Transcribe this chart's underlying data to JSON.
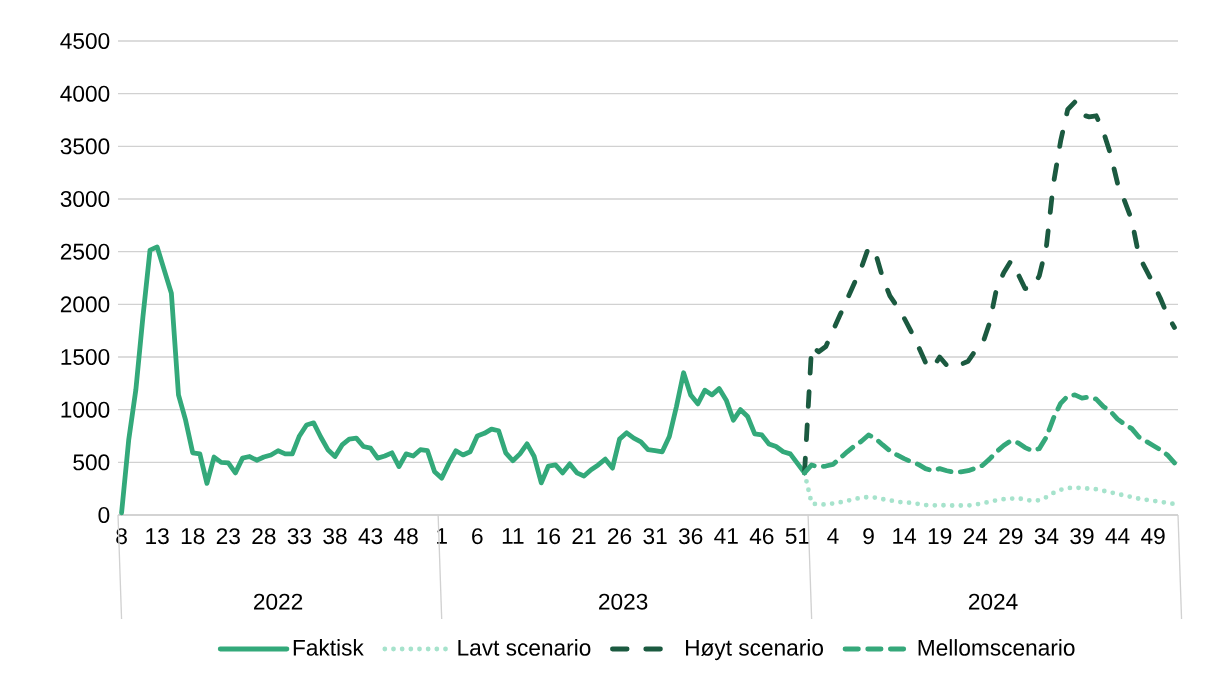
{
  "chart_data": {
    "type": "line",
    "categories": [
      "8",
      null,
      null,
      null,
      null,
      "13",
      null,
      null,
      null,
      null,
      "18",
      null,
      null,
      null,
      null,
      "23",
      null,
      null,
      null,
      null,
      "28",
      null,
      null,
      null,
      null,
      "33",
      null,
      null,
      null,
      null,
      "38",
      null,
      null,
      null,
      null,
      "43",
      null,
      null,
      null,
      null,
      "48",
      null,
      null,
      null,
      null,
      "1",
      null,
      null,
      null,
      null,
      "6",
      null,
      null,
      null,
      null,
      "11",
      null,
      null,
      null,
      null,
      "16",
      null,
      null,
      null,
      null,
      "21",
      null,
      null,
      null,
      null,
      "26",
      null,
      null,
      null,
      null,
      "31",
      null,
      null,
      null,
      null,
      "36",
      null,
      null,
      null,
      null,
      "41",
      null,
      null,
      null,
      null,
      "46",
      null,
      null,
      null,
      null,
      "51",
      null,
      null,
      null,
      null,
      "4",
      null,
      null,
      null,
      null,
      "9",
      null,
      null,
      null,
      null,
      "14",
      null,
      null,
      null,
      null,
      "19",
      null,
      null,
      null,
      null,
      "24",
      null,
      null,
      null,
      null,
      "29",
      null,
      null,
      null,
      null,
      "34",
      null,
      null,
      null,
      null,
      "39",
      null,
      null,
      null,
      null,
      "44",
      null,
      null,
      null,
      null,
      "49",
      null,
      null,
      null
    ],
    "annotations": [
      "2022",
      "2023",
      "2024"
    ],
    "series": [
      {
        "name": "Faktisk",
        "color": "#33a97a",
        "line_style": "solid",
        "values": [
          20,
          710,
          1185,
          1880,
          2515,
          2545,
          2325,
          2105,
          1140,
          900,
          590,
          580,
          300,
          550,
          500,
          495,
          400,
          540,
          555,
          520,
          550,
          570,
          610,
          580,
          580,
          750,
          855,
          875,
          740,
          620,
          555,
          665,
          720,
          730,
          650,
          635,
          540,
          560,
          590,
          460,
          580,
          560,
          620,
          610,
          410,
          350,
          490,
          610,
          570,
          600,
          750,
          775,
          815,
          800,
          590,
          515,
          580,
          675,
          555,
          305,
          465,
          475,
          400,
          485,
          400,
          370,
          430,
          475,
          530,
          445,
          720,
          780,
          730,
          695,
          620,
          610,
          600,
          745,
          1030,
          1350,
          1140,
          1055,
          1185,
          1140,
          1200,
          1090,
          900,
          1000,
          935,
          770,
          760,
          675,
          650,
          600,
          580,
          490,
          400,
          null,
          null,
          null,
          null,
          null,
          null,
          null,
          null,
          null,
          null,
          null,
          null,
          null,
          null,
          null,
          null,
          null,
          null,
          null,
          null,
          null,
          null,
          null,
          null,
          null,
          null,
          null,
          null,
          null,
          null,
          null,
          null,
          null,
          null,
          null,
          null,
          null,
          null,
          null,
          null,
          null,
          null,
          null,
          null,
          null,
          null,
          null,
          null,
          null,
          null,
          null,
          null
        ]
      },
      {
        "name": "Lavt scenario",
        "color": "#a6e3cc",
        "line_style": "dotted",
        "values": [
          null,
          null,
          null,
          null,
          null,
          null,
          null,
          null,
          null,
          null,
          null,
          null,
          null,
          null,
          null,
          null,
          null,
          null,
          null,
          null,
          null,
          null,
          null,
          null,
          null,
          null,
          null,
          null,
          null,
          null,
          null,
          null,
          null,
          null,
          null,
          null,
          null,
          null,
          null,
          null,
          null,
          null,
          null,
          null,
          null,
          null,
          null,
          null,
          null,
          null,
          null,
          null,
          null,
          null,
          null,
          null,
          null,
          null,
          null,
          null,
          null,
          null,
          null,
          null,
          null,
          null,
          null,
          null,
          null,
          null,
          null,
          null,
          null,
          null,
          null,
          null,
          null,
          null,
          null,
          null,
          null,
          null,
          null,
          null,
          null,
          null,
          null,
          null,
          null,
          null,
          null,
          null,
          null,
          null,
          null,
          null,
          400,
          110,
          100,
          100,
          110,
          120,
          135,
          150,
          165,
          170,
          165,
          150,
          140,
          125,
          120,
          115,
          105,
          95,
          90,
          95,
          90,
          90,
          90,
          90,
          100,
          110,
          125,
          140,
          150,
          155,
          160,
          145,
          135,
          140,
          170,
          210,
          240,
          255,
          260,
          255,
          250,
          245,
          230,
          215,
          200,
          185,
          170,
          155,
          145,
          135,
          125,
          115,
          105
        ]
      },
      {
        "name": "Høyt scenario",
        "color": "#1b5a40",
        "line_style": "dashdot",
        "values": [
          null,
          null,
          null,
          null,
          null,
          null,
          null,
          null,
          null,
          null,
          null,
          null,
          null,
          null,
          null,
          null,
          null,
          null,
          null,
          null,
          null,
          null,
          null,
          null,
          null,
          null,
          null,
          null,
          null,
          null,
          null,
          null,
          null,
          null,
          null,
          null,
          null,
          null,
          null,
          null,
          null,
          null,
          null,
          null,
          null,
          null,
          null,
          null,
          null,
          null,
          null,
          null,
          null,
          null,
          null,
          null,
          null,
          null,
          null,
          null,
          null,
          null,
          null,
          null,
          null,
          null,
          null,
          null,
          null,
          null,
          null,
          null,
          null,
          null,
          null,
          null,
          null,
          null,
          null,
          null,
          null,
          null,
          null,
          null,
          null,
          null,
          null,
          null,
          null,
          null,
          null,
          null,
          null,
          null,
          null,
          null,
          400,
          1600,
          1550,
          1600,
          1750,
          1900,
          2050,
          2200,
          2350,
          2540,
          2480,
          2250,
          2080,
          1980,
          1870,
          1740,
          1600,
          1450,
          1390,
          1500,
          1420,
          1400,
          1430,
          1460,
          1560,
          1620,
          1820,
          2150,
          2300,
          2410,
          2290,
          2150,
          2150,
          2270,
          2550,
          3150,
          3550,
          3850,
          3920,
          3800,
          3780,
          3790,
          3640,
          3430,
          3150,
          2980,
          2800,
          2460,
          2330,
          2200,
          2060,
          1900,
          1780
        ]
      },
      {
        "name": "Mellomscenario",
        "color": "#35a87a",
        "line_style": "dashed",
        "values": [
          null,
          null,
          null,
          null,
          null,
          null,
          null,
          null,
          null,
          null,
          null,
          null,
          null,
          null,
          null,
          null,
          null,
          null,
          null,
          null,
          null,
          null,
          null,
          null,
          null,
          null,
          null,
          null,
          null,
          null,
          null,
          null,
          null,
          null,
          null,
          null,
          null,
          null,
          null,
          null,
          null,
          null,
          null,
          null,
          null,
          null,
          null,
          null,
          null,
          null,
          null,
          null,
          null,
          null,
          null,
          null,
          null,
          null,
          null,
          null,
          null,
          null,
          null,
          null,
          null,
          null,
          null,
          null,
          null,
          null,
          null,
          null,
          null,
          null,
          null,
          null,
          null,
          null,
          null,
          null,
          null,
          null,
          null,
          null,
          null,
          null,
          null,
          null,
          null,
          null,
          null,
          null,
          null,
          null,
          null,
          null,
          400,
          475,
          455,
          465,
          480,
          540,
          600,
          655,
          700,
          760,
          725,
          665,
          610,
          570,
          535,
          505,
          480,
          440,
          420,
          440,
          420,
          405,
          410,
          420,
          445,
          470,
          530,
          600,
          660,
          705,
          685,
          640,
          610,
          630,
          740,
          920,
          1060,
          1130,
          1140,
          1110,
          1120,
          1100,
          1030,
          985,
          910,
          860,
          820,
          740,
          700,
          660,
          620,
          570,
          495
        ]
      }
    ],
    "ylim": [
      0,
      4500
    ],
    "yticks": [
      0,
      500,
      1000,
      1500,
      2000,
      2500,
      3000,
      3500,
      4000,
      4500
    ],
    "grid": "y",
    "legend": "bottom",
    "marker": "none"
  }
}
